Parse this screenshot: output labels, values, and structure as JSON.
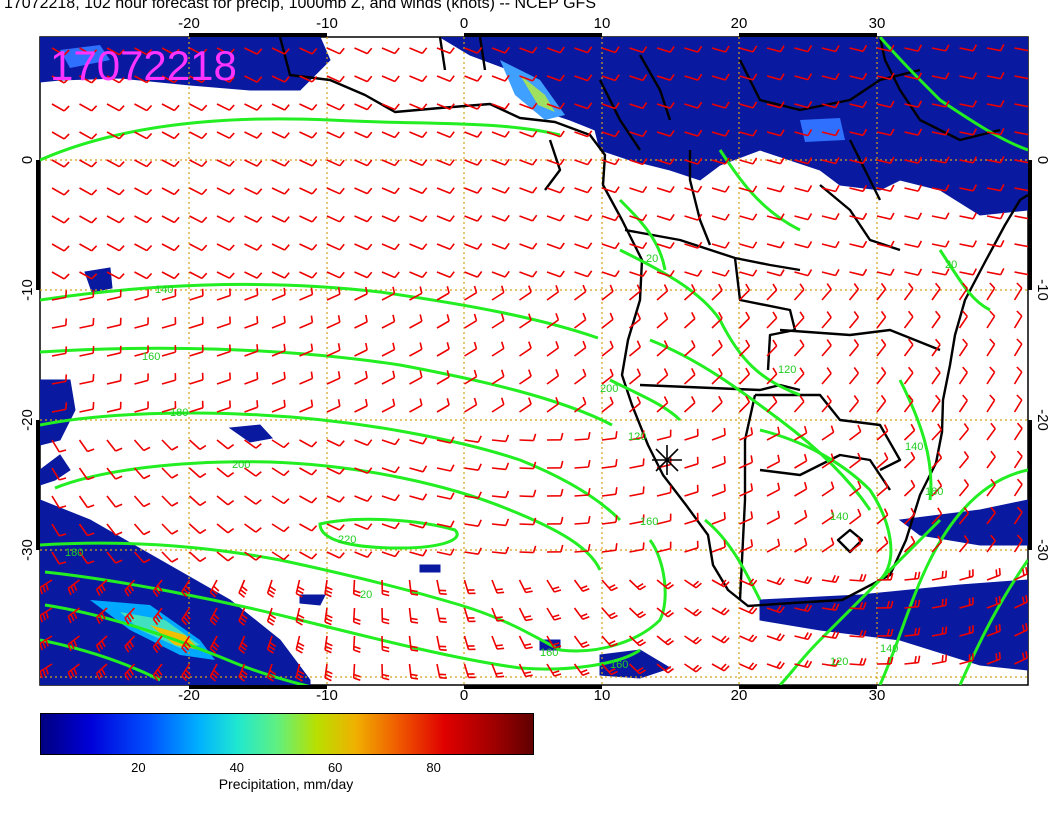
{
  "title": "17072218, 102 hour forecast for precip, 1000mb Z, and winds (knots) -- NCEP GFS",
  "stamp": "17072218",
  "lon_ticks": [
    "-20",
    "-10",
    "0",
    "10",
    "20",
    "30"
  ],
  "lat_ticks": [
    "0",
    "-10",
    "-20",
    "-30"
  ],
  "contour_labels": [
    "140",
    "160",
    "180",
    "200",
    "220",
    "120",
    "20",
    "160",
    "180",
    "200",
    "140",
    "120",
    "20",
    "160",
    "140",
    "120",
    "140",
    "180",
    "20",
    "160"
  ],
  "colorbar": {
    "label": "Precipitation, mm/day",
    "ticks": [
      "20",
      "40",
      "60",
      "80"
    ],
    "tick_values": [
      20,
      40,
      60,
      80
    ],
    "range": [
      0,
      100
    ]
  },
  "colors": {
    "contour": "#22ee22",
    "wind_barb": "#ee0000",
    "grid": "#d4a017",
    "precip_low": "#0a1aa0",
    "stamp": "#ff33ff"
  }
}
